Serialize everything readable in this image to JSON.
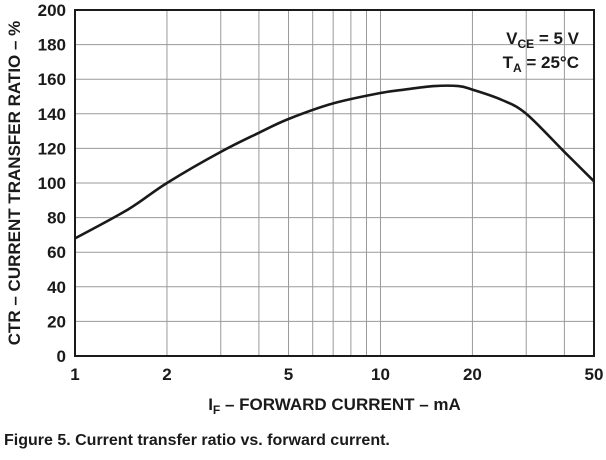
{
  "chart_data": {
    "type": "line",
    "x_scale": "log",
    "xlabel": {
      "main": "I",
      "sub": "F",
      "rest": " – FORWARD CURRENT – mA"
    },
    "ylabel": "CTR – CURRENT TRANSFER RATIO – %",
    "xlim": [
      1,
      50
    ],
    "ylim": [
      0,
      200
    ],
    "x_ticks": [
      1,
      2,
      5,
      10,
      20,
      50
    ],
    "x_gridlines": [
      1,
      2,
      3,
      4,
      5,
      6,
      7,
      8,
      9,
      10,
      20,
      30,
      40,
      50
    ],
    "y_ticks": [
      0,
      20,
      40,
      60,
      80,
      100,
      120,
      140,
      160,
      180,
      200
    ],
    "grid": true,
    "annotations": {
      "vce": {
        "main": "V",
        "sub": "CE",
        "rest": " = 5 V"
      },
      "ta": {
        "main": "T",
        "sub": "A",
        "rest": " = 25°C"
      }
    },
    "series": [
      {
        "x": [
          1,
          1.5,
          2,
          3,
          4,
          5,
          7,
          10,
          12,
          15,
          18,
          20,
          25,
          30,
          40,
          50
        ],
        "y": [
          68,
          85,
          100,
          118,
          129,
          137,
          146,
          152,
          154,
          156,
          156,
          154,
          148,
          140,
          118,
          101
        ]
      }
    ]
  },
  "caption": "Figure 5. Current transfer ratio vs. forward current."
}
